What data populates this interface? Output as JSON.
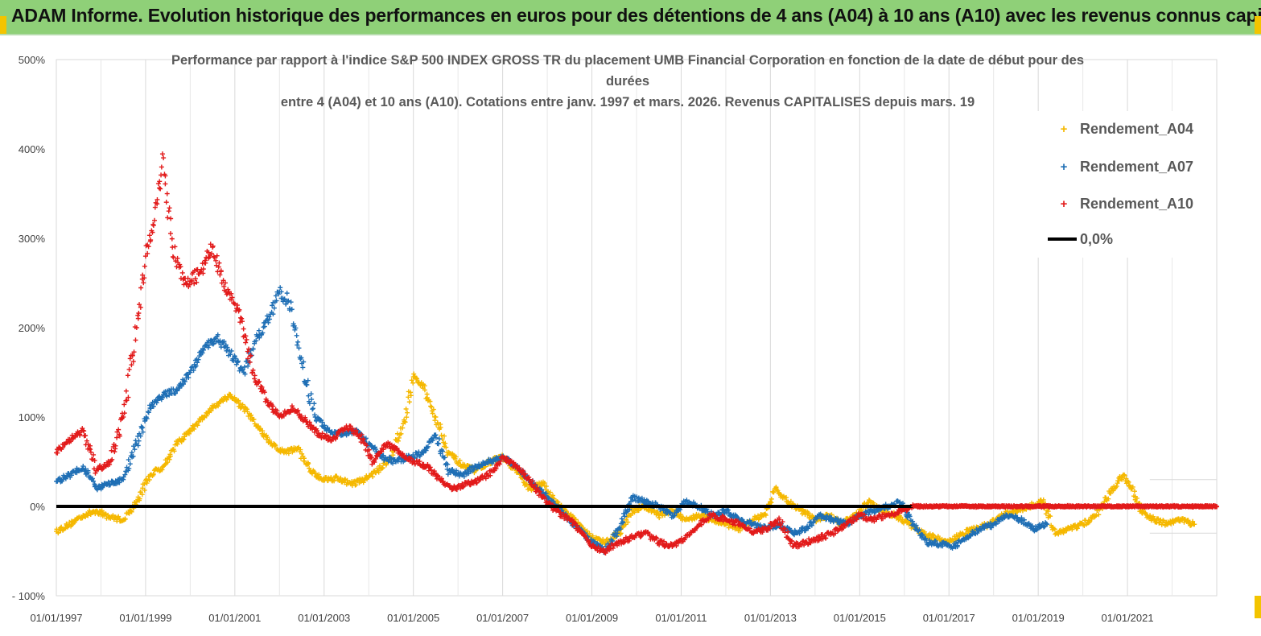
{
  "banner": {
    "title": "ADAM Informe. Evolution historique des performances en euros pour des détentions de 4 ans (A04) à 10 ans (A10) avec les revenus connus capitalisés"
  },
  "chart_data": {
    "type": "scatter",
    "title_lines": [
      "Performance par rapport à l'indice S&P 500 INDEX GROSS TR  du placement UMB Financial Corporation en fonction de la date de début pour des",
      "durées",
      "entre 4 (A04) et 10 ans (A10). Cotations entre janv. 1997 et mars. 2026. Revenus CAPITALISES depuis mars. 19"
    ],
    "xlabel": "",
    "ylabel": "",
    "xlim": [
      1997.0,
      2023.0
    ],
    "ylim": [
      -100,
      500
    ],
    "y_ticks": [
      "- 100%",
      "0%",
      "100%",
      "200%",
      "300%",
      "400%",
      "500%"
    ],
    "y_tick_values": [
      -100,
      0,
      100,
      200,
      300,
      400,
      500
    ],
    "x_ticks": [
      "01/01/1997",
      "01/01/1999",
      "01/01/2001",
      "01/01/2003",
      "01/01/2005",
      "01/01/2007",
      "01/01/2009",
      "01/01/2011",
      "01/01/2013",
      "01/01/2015",
      "01/01/2017",
      "01/01/2019",
      "01/01/2021"
    ],
    "x_tick_values": [
      1997,
      1999,
      2001,
      2003,
      2005,
      2007,
      2009,
      2011,
      2013,
      2015,
      2017,
      2019,
      2021
    ],
    "grid": "vertical",
    "legend_position": "right",
    "series": [
      {
        "name": "Rendement_A04",
        "color": "#f5b800",
        "marker": "+",
        "x": [
          1997.0,
          1997.3,
          1997.6,
          1997.9,
          1998.2,
          1998.5,
          1998.8,
          1999.1,
          1999.4,
          1999.7,
          2000.0,
          2000.3,
          2000.6,
          2000.9,
          2001.2,
          2001.5,
          2001.8,
          2002.1,
          2002.4,
          2002.7,
          2003.0,
          2003.3,
          2003.6,
          2003.9,
          2004.2,
          2004.5,
          2004.8,
          2005.0,
          2005.2,
          2005.5,
          2005.8,
          2006.1,
          2006.4,
          2006.7,
          2007.0,
          2007.3,
          2007.6,
          2007.9,
          2008.2,
          2008.5,
          2008.8,
          2009.0,
          2009.3,
          2009.6,
          2009.9,
          2010.2,
          2010.5,
          2010.8,
          2011.1,
          2011.4,
          2011.7,
          2012.0,
          2012.3,
          2012.6,
          2012.9,
          2013.1,
          2013.4,
          2013.7,
          2014.0,
          2014.3,
          2014.6,
          2014.9,
          2015.2,
          2015.5,
          2015.8,
          2016.1,
          2016.4,
          2016.7,
          2017.0,
          2017.3,
          2017.6,
          2017.9,
          2018.2,
          2018.5,
          2018.8,
          2019.1,
          2019.4,
          2019.7,
          2020.0,
          2020.3,
          2020.6,
          2020.9,
          2021.1,
          2021.3,
          2021.6,
          2021.9,
          2022.2,
          2022.5
        ],
        "values": [
          -28,
          -20,
          -10,
          -5,
          -12,
          -15,
          5,
          35,
          45,
          70,
          85,
          100,
          115,
          125,
          110,
          90,
          70,
          60,
          65,
          40,
          30,
          32,
          25,
          30,
          40,
          55,
          95,
          145,
          135,
          100,
          60,
          45,
          40,
          50,
          55,
          40,
          20,
          25,
          5,
          -10,
          -25,
          -35,
          -40,
          -30,
          -5,
          0,
          -10,
          -5,
          -15,
          -10,
          -15,
          -20,
          -25,
          -15,
          -10,
          20,
          5,
          -5,
          -15,
          -10,
          -20,
          -10,
          5,
          -5,
          -10,
          -20,
          -30,
          -35,
          -40,
          -30,
          -25,
          -20,
          -10,
          -5,
          0,
          5,
          -30,
          -25,
          -20,
          -10,
          15,
          35,
          20,
          -5,
          -15,
          -20,
          -15,
          -20
        ]
      },
      {
        "name": "Rendement_A07",
        "color": "#1f6fb5",
        "marker": "+",
        "x": [
          1997.0,
          1997.3,
          1997.6,
          1997.9,
          1998.2,
          1998.5,
          1998.8,
          1999.1,
          1999.4,
          1999.7,
          2000.0,
          2000.3,
          2000.6,
          2000.9,
          2001.2,
          2001.5,
          2001.8,
          2002.0,
          2002.2,
          2002.5,
          2002.8,
          2003.1,
          2003.4,
          2003.7,
          2004.0,
          2004.3,
          2004.6,
          2004.9,
          2005.2,
          2005.5,
          2005.8,
          2006.1,
          2006.4,
          2006.7,
          2007.0,
          2007.3,
          2007.6,
          2007.9,
          2008.2,
          2008.5,
          2008.8,
          2009.0,
          2009.3,
          2009.6,
          2009.9,
          2010.2,
          2010.5,
          2010.8,
          2011.1,
          2011.4,
          2011.7,
          2012.0,
          2012.3,
          2012.6,
          2012.9,
          2013.2,
          2013.5,
          2013.8,
          2014.1,
          2014.4,
          2014.7,
          2015.0,
          2015.3,
          2015.6,
          2015.9,
          2016.2,
          2016.5,
          2016.8,
          2017.1,
          2017.4,
          2017.7,
          2018.0,
          2018.3,
          2018.6,
          2018.9,
          2019.2
        ],
        "values": [
          28,
          35,
          45,
          20,
          25,
          30,
          70,
          110,
          125,
          130,
          150,
          175,
          190,
          170,
          150,
          190,
          215,
          240,
          230,
          160,
          100,
          85,
          80,
          85,
          70,
          55,
          50,
          55,
          60,
          80,
          40,
          35,
          45,
          50,
          55,
          45,
          30,
          15,
          0,
          -15,
          -30,
          -40,
          -50,
          -25,
          10,
          5,
          0,
          -10,
          5,
          0,
          -10,
          -5,
          -15,
          -20,
          -25,
          -20,
          -30,
          -25,
          -10,
          -15,
          -20,
          -10,
          -5,
          0,
          5,
          -20,
          -40,
          -42,
          -45,
          -35,
          -25,
          -20,
          -10,
          -15,
          -25,
          -20
        ]
      },
      {
        "name": "Rendement_A10",
        "color": "#e21a1a",
        "marker": "+",
        "x": [
          1997.0,
          1997.3,
          1997.6,
          1997.9,
          1998.2,
          1998.5,
          1998.8,
          1999.0,
          1999.2,
          1999.4,
          1999.6,
          1999.9,
          2000.2,
          2000.5,
          2000.8,
          2001.1,
          2001.4,
          2001.7,
          2002.0,
          2002.3,
          2002.6,
          2002.9,
          2003.2,
          2003.5,
          2003.8,
          2004.1,
          2004.4,
          2004.7,
          2005.0,
          2005.3,
          2005.6,
          2005.9,
          2006.2,
          2006.5,
          2006.8,
          2007.0,
          2007.3,
          2007.6,
          2007.9,
          2008.2,
          2008.5,
          2008.8,
          2009.0,
          2009.3,
          2009.6,
          2009.9,
          2010.2,
          2010.5,
          2010.8,
          2011.1,
          2011.4,
          2011.7,
          2012.0,
          2012.3,
          2012.6,
          2012.9,
          2013.2,
          2013.5,
          2013.8,
          2014.1,
          2014.4,
          2014.7,
          2015.0,
          2015.3,
          2015.6,
          2015.9,
          2016.2,
          2016.6,
          2017.0,
          2017.5,
          2018.0,
          2018.5,
          2019.0,
          2019.5,
          2020.0,
          2020.5,
          2021.0,
          2021.5,
          2022.0,
          2022.5,
          2023.0
        ],
        "values": [
          60,
          75,
          85,
          40,
          50,
          100,
          200,
          280,
          320,
          390,
          290,
          250,
          260,
          290,
          240,
          220,
          150,
          120,
          100,
          110,
          95,
          80,
          75,
          90,
          80,
          50,
          70,
          60,
          50,
          45,
          30,
          20,
          25,
          30,
          40,
          55,
          45,
          30,
          10,
          -5,
          -15,
          -30,
          -45,
          -50,
          -40,
          -35,
          -30,
          -40,
          -45,
          -35,
          -20,
          -10,
          -15,
          -20,
          -30,
          -25,
          -15,
          -45,
          -40,
          -35,
          -30,
          -20,
          -10,
          -15,
          -10,
          -5,
          0,
          0,
          0,
          0,
          0,
          0,
          0,
          0,
          0,
          0,
          0,
          0,
          0,
          0,
          0
        ]
      },
      {
        "name": "0,0%",
        "color": "#000000",
        "marker": "line",
        "x": [
          1997.0,
          2023.0
        ],
        "values": [
          0,
          0
        ]
      }
    ]
  }
}
